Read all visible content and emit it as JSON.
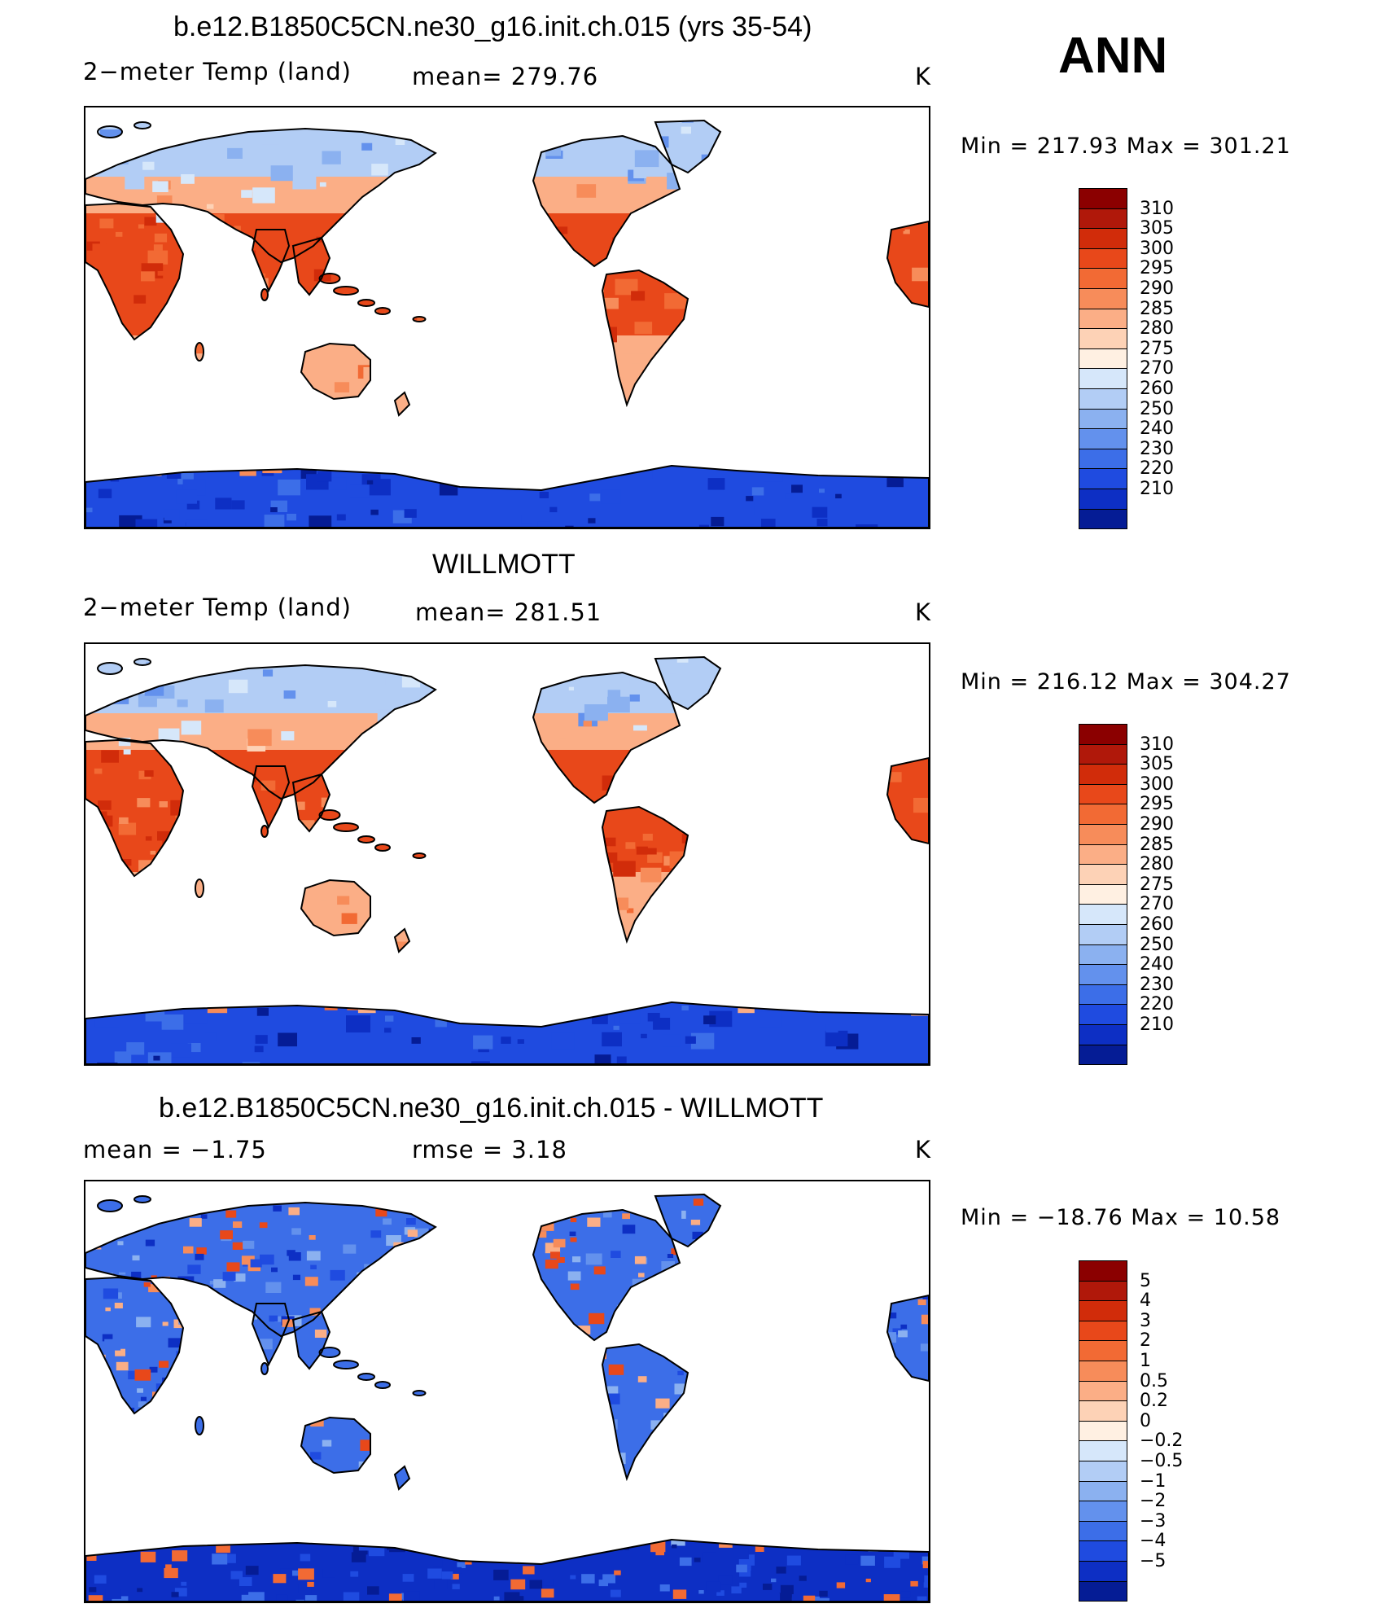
{
  "season": "ANN",
  "panels": [
    {
      "id": "model",
      "title": "b.e12.B1850C5CN.ne30_g16.init.ch.015 (yrs 35-54)",
      "variable": "2−meter Temp (land)",
      "stat": "mean=  279.76",
      "stat2": "",
      "units": "K",
      "minmax": "Min  =  217.93  Max  =  301.21",
      "colorbar": {
        "labels": [
          "310",
          "305",
          "300",
          "295",
          "290",
          "285",
          "280",
          "275",
          "270",
          "260",
          "250",
          "240",
          "230",
          "220",
          "210"
        ],
        "colors": [
          "#8b0000",
          "#b0180a",
          "#d12c0a",
          "#e8481a",
          "#f26a34",
          "#f78c5a",
          "#fbae86",
          "#fdd2b6",
          "#fff0e2",
          "#d6e7fa",
          "#b2cdf5",
          "#8bb1f0",
          "#6391ed",
          "#3c6ee8",
          "#1f4be0",
          "#0d2fc4",
          "#051c95"
        ]
      }
    },
    {
      "id": "obs",
      "title": "WILLMOTT",
      "variable": "2−meter Temp (land)",
      "stat": "mean=  281.51",
      "stat2": "",
      "units": "K",
      "minmax": "Min  =  216.12  Max  =  304.27",
      "colorbar": {
        "labels": [
          "310",
          "305",
          "300",
          "295",
          "290",
          "285",
          "280",
          "275",
          "270",
          "260",
          "250",
          "240",
          "230",
          "220",
          "210"
        ],
        "colors": [
          "#8b0000",
          "#b0180a",
          "#d12c0a",
          "#e8481a",
          "#f26a34",
          "#f78c5a",
          "#fbae86",
          "#fdd2b6",
          "#fff0e2",
          "#d6e7fa",
          "#b2cdf5",
          "#8bb1f0",
          "#6391ed",
          "#3c6ee8",
          "#1f4be0",
          "#0d2fc4",
          "#051c95"
        ]
      }
    },
    {
      "id": "diff",
      "title": "b.e12.B1850C5CN.ne30_g16.init.ch.015 - WILLMOTT",
      "variable": "mean  =     −1.75",
      "stat": "rmse  =     3.18",
      "stat2": "",
      "units": "K",
      "minmax": "Min  =  −18.76  Max  =    10.58",
      "colorbar": {
        "labels": [
          "5",
          "4",
          "3",
          "2",
          "1",
          "0.5",
          "0.2",
          "0",
          "−0.2",
          "−0.5",
          "−1",
          "−2",
          "−3",
          "−4",
          "−5"
        ],
        "colors": [
          "#8b0000",
          "#b0180a",
          "#d12c0a",
          "#e8481a",
          "#f26a34",
          "#f78c5a",
          "#fbae86",
          "#fdd2b6",
          "#fff0e2",
          "#d6e7fa",
          "#b2cdf5",
          "#8bb1f0",
          "#6391ed",
          "#3c6ee8",
          "#1f4be0",
          "#0d2fc4",
          "#051c95"
        ]
      }
    }
  ]
}
